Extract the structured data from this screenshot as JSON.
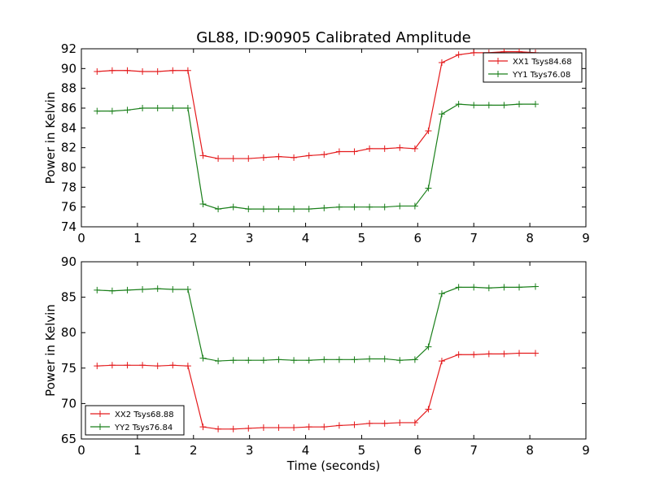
{
  "title": "GL88, ID:90905 Calibrated Amplitude",
  "colors": {
    "XX": "#e41a1c",
    "YY": "#1a7f1a"
  },
  "chart_data": [
    {
      "type": "line",
      "title": "GL88, ID:90905 Calibrated Amplitude",
      "xlabel": "",
      "ylabel": "Power in Kelvin",
      "xlim": [
        0,
        9
      ],
      "ylim": [
        74,
        92
      ],
      "xticks": [
        0,
        1,
        2,
        3,
        4,
        5,
        6,
        7,
        8,
        9
      ],
      "yticks": [
        74,
        76,
        78,
        80,
        82,
        84,
        86,
        88,
        90,
        92
      ],
      "legend_position": "top-right",
      "grid": false,
      "x": [
        0.28,
        0.55,
        0.82,
        1.09,
        1.36,
        1.63,
        1.9,
        2.17,
        2.44,
        2.71,
        2.98,
        3.25,
        3.52,
        3.79,
        4.06,
        4.33,
        4.6,
        4.87,
        5.14,
        5.41,
        5.68,
        5.95,
        6.19,
        6.43,
        6.73,
        7.0,
        7.27,
        7.54,
        7.81,
        8.1
      ],
      "series": [
        {
          "name": "XX1 Tsys84.68",
          "color_key": "XX",
          "values": [
            89.7,
            89.8,
            89.8,
            89.7,
            89.7,
            89.8,
            89.8,
            81.2,
            80.9,
            80.9,
            80.9,
            81.0,
            81.1,
            81.0,
            81.2,
            81.3,
            81.6,
            81.6,
            81.9,
            81.9,
            82.0,
            81.9,
            83.7,
            90.6,
            91.4,
            91.6,
            91.6,
            91.7,
            91.7,
            91.6
          ]
        },
        {
          "name": "YY1 Tsys76.08",
          "color_key": "YY",
          "values": [
            85.7,
            85.7,
            85.8,
            86.0,
            86.0,
            86.0,
            86.0,
            76.3,
            75.8,
            76.0,
            75.8,
            75.8,
            75.8,
            75.8,
            75.8,
            75.9,
            76.0,
            76.0,
            76.0,
            76.0,
            76.1,
            76.1,
            77.9,
            85.4,
            86.4,
            86.3,
            86.3,
            86.3,
            86.4,
            86.4
          ]
        }
      ]
    },
    {
      "type": "line",
      "title": "",
      "xlabel": "Time (seconds)",
      "ylabel": "Power in Kelvin",
      "xlim": [
        0,
        9
      ],
      "ylim": [
        65,
        90
      ],
      "xticks": [
        0,
        1,
        2,
        3,
        4,
        5,
        6,
        7,
        8,
        9
      ],
      "yticks": [
        65,
        70,
        75,
        80,
        85,
        90
      ],
      "legend_position": "bottom-left",
      "grid": false,
      "x": [
        0.28,
        0.55,
        0.82,
        1.09,
        1.36,
        1.63,
        1.9,
        2.17,
        2.44,
        2.71,
        2.98,
        3.25,
        3.52,
        3.79,
        4.06,
        4.33,
        4.6,
        4.87,
        5.14,
        5.41,
        5.68,
        5.95,
        6.19,
        6.43,
        6.73,
        7.0,
        7.27,
        7.54,
        7.81,
        8.1
      ],
      "series": [
        {
          "name": "XX2 Tsys68.88",
          "color_key": "XX",
          "values": [
            75.3,
            75.4,
            75.4,
            75.4,
            75.3,
            75.4,
            75.3,
            66.7,
            66.4,
            66.4,
            66.5,
            66.6,
            66.6,
            66.6,
            66.7,
            66.7,
            66.9,
            67.0,
            67.2,
            67.2,
            67.3,
            67.3,
            69.2,
            76.0,
            76.9,
            76.9,
            77.0,
            77.0,
            77.1,
            77.1
          ]
        },
        {
          "name": "YY2 Tsys76.84",
          "color_key": "YY",
          "values": [
            86.0,
            85.9,
            86.0,
            86.1,
            86.2,
            86.1,
            86.1,
            76.4,
            76.0,
            76.1,
            76.1,
            76.1,
            76.2,
            76.1,
            76.1,
            76.2,
            76.2,
            76.2,
            76.3,
            76.3,
            76.1,
            76.2,
            78.0,
            85.5,
            86.4,
            86.4,
            86.3,
            86.4,
            86.4,
            86.5
          ]
        }
      ]
    }
  ]
}
